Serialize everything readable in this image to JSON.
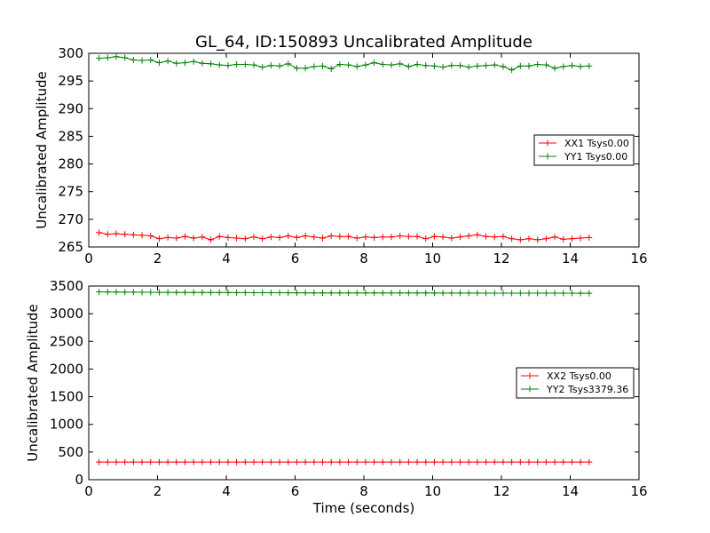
{
  "figure": {
    "title": "GL_64, ID:150893 Uncalibrated Amplitude"
  },
  "chart_data": [
    {
      "type": "line",
      "title": "GL_64, ID:150893 Uncalibrated Amplitude",
      "xlabel": "",
      "ylabel": "Uncalibrated Amplitude",
      "xlim": [
        0,
        16
      ],
      "ylim": [
        265,
        300
      ],
      "xticks": [
        0,
        2,
        4,
        6,
        8,
        10,
        12,
        14,
        16
      ],
      "yticks": [
        265,
        270,
        275,
        280,
        285,
        290,
        295,
        300
      ],
      "legend_position": "center-right",
      "grid": false,
      "x": [
        0.3,
        0.55,
        0.8,
        1.05,
        1.3,
        1.55,
        1.8,
        2.05,
        2.3,
        2.55,
        2.8,
        3.05,
        3.3,
        3.55,
        3.8,
        4.05,
        4.3,
        4.55,
        4.8,
        5.05,
        5.3,
        5.55,
        5.8,
        6.05,
        6.3,
        6.55,
        6.8,
        7.05,
        7.3,
        7.55,
        7.8,
        8.05,
        8.3,
        8.55,
        8.8,
        9.05,
        9.3,
        9.55,
        9.8,
        10.05,
        10.3,
        10.55,
        10.8,
        11.05,
        11.3,
        11.55,
        11.8,
        12.05,
        12.3,
        12.55,
        12.8,
        13.05,
        13.3,
        13.55,
        13.8,
        14.05,
        14.3,
        14.55
      ],
      "series": [
        {
          "name": "XX1 Tsys0.00",
          "color": "#ff0000",
          "values": [
            267.6,
            267.3,
            267.4,
            267.3,
            267.2,
            267.1,
            267.0,
            266.5,
            266.7,
            266.6,
            266.9,
            266.6,
            266.8,
            266.3,
            266.9,
            266.7,
            266.6,
            266.5,
            266.8,
            266.5,
            266.8,
            266.7,
            267.0,
            266.7,
            267.0,
            266.8,
            266.6,
            267.0,
            266.9,
            266.9,
            266.6,
            266.8,
            266.7,
            266.8,
            266.8,
            267.0,
            266.9,
            266.9,
            266.5,
            266.9,
            266.8,
            266.6,
            266.8,
            267.0,
            267.2,
            266.9,
            266.8,
            266.9,
            266.5,
            266.3,
            266.5,
            266.3,
            266.5,
            266.8,
            266.4,
            266.5,
            266.6,
            266.7
          ]
        },
        {
          "name": "YY1 Tsys0.00",
          "color": "#008000",
          "values": [
            299.1,
            299.2,
            299.4,
            299.2,
            298.8,
            298.7,
            298.8,
            298.3,
            298.6,
            298.2,
            298.3,
            298.5,
            298.2,
            298.1,
            297.9,
            297.8,
            298.0,
            298.0,
            297.9,
            297.5,
            297.8,
            297.7,
            298.1,
            297.3,
            297.3,
            297.6,
            297.7,
            297.2,
            298.0,
            297.9,
            297.6,
            297.9,
            298.3,
            298.0,
            297.9,
            298.1,
            297.6,
            298.0,
            297.8,
            297.7,
            297.5,
            297.8,
            297.8,
            297.5,
            297.7,
            297.8,
            297.9,
            297.6,
            297.0,
            297.7,
            297.7,
            298.0,
            297.9,
            297.3,
            297.6,
            297.8,
            297.6,
            297.7
          ]
        }
      ]
    },
    {
      "type": "line",
      "title": "",
      "xlabel": "Time (seconds)",
      "ylabel": "Uncalibrated Amplitude",
      "xlim": [
        0,
        16
      ],
      "ylim": [
        0,
        3500
      ],
      "xticks": [
        0,
        2,
        4,
        6,
        8,
        10,
        12,
        14,
        16
      ],
      "yticks": [
        0,
        500,
        1000,
        1500,
        2000,
        2500,
        3000,
        3500
      ],
      "legend_position": "center-right",
      "grid": false,
      "x": [
        0.3,
        0.55,
        0.8,
        1.05,
        1.3,
        1.55,
        1.8,
        2.05,
        2.3,
        2.55,
        2.8,
        3.05,
        3.3,
        3.55,
        3.8,
        4.05,
        4.3,
        4.55,
        4.8,
        5.05,
        5.3,
        5.55,
        5.8,
        6.05,
        6.3,
        6.55,
        6.8,
        7.05,
        7.3,
        7.55,
        7.8,
        8.05,
        8.3,
        8.55,
        8.8,
        9.05,
        9.3,
        9.55,
        9.8,
        10.05,
        10.3,
        10.55,
        10.8,
        11.05,
        11.3,
        11.55,
        11.8,
        12.05,
        12.3,
        12.55,
        12.8,
        13.05,
        13.3,
        13.55,
        13.8,
        14.05,
        14.3,
        14.55
      ],
      "series": [
        {
          "name": "XX2 Tsys0.00",
          "color": "#ff0000",
          "values": [
            320,
            320,
            320,
            320,
            320,
            320,
            320,
            320,
            320,
            320,
            320,
            320,
            320,
            320,
            320,
            320,
            320,
            320,
            320,
            320,
            320,
            320,
            320,
            320,
            320,
            320,
            320,
            320,
            320,
            320,
            320,
            320,
            320,
            320,
            320,
            320,
            320,
            320,
            320,
            320,
            320,
            320,
            320,
            320,
            320,
            320,
            320,
            320,
            320,
            320,
            320,
            320,
            320,
            320,
            320,
            320,
            320,
            320
          ]
        },
        {
          "name": "YY2 Tsys3379.36",
          "color": "#008000",
          "values": [
            3395,
            3393,
            3392,
            3390,
            3390,
            3388,
            3388,
            3386,
            3386,
            3385,
            3385,
            3384,
            3384,
            3383,
            3383,
            3382,
            3381,
            3381,
            3380,
            3380,
            3379,
            3379,
            3378,
            3378,
            3377,
            3377,
            3377,
            3376,
            3376,
            3376,
            3376,
            3375,
            3375,
            3375,
            3375,
            3374,
            3374,
            3374,
            3374,
            3374,
            3373,
            3373,
            3373,
            3373,
            3373,
            3372,
            3372,
            3372,
            3372,
            3372,
            3372,
            3371,
            3371,
            3371,
            3371,
            3371,
            3370,
            3370
          ]
        }
      ]
    }
  ]
}
